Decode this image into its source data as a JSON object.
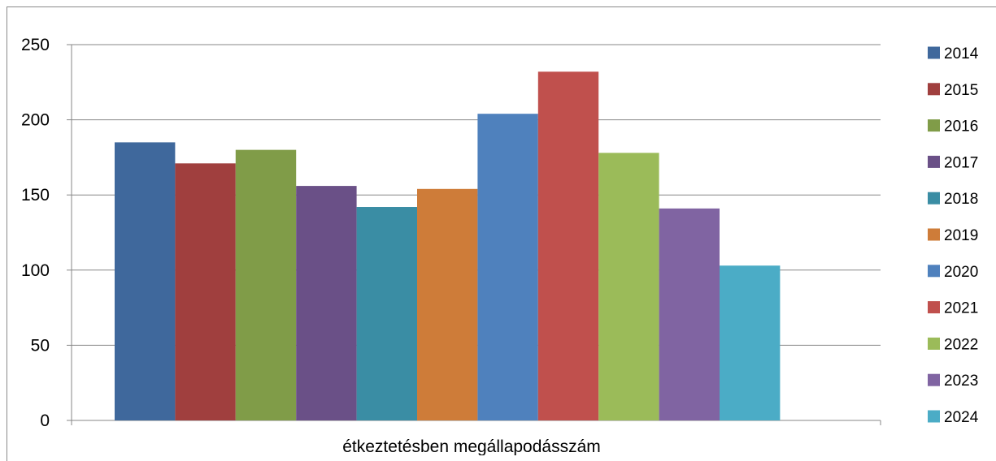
{
  "chart_data": {
    "type": "bar",
    "title": "",
    "xlabel": "étkeztetésben megállapodásszám",
    "ylabel": "",
    "categories": [
      "étkeztetésben megállapodásszám"
    ],
    "ylim": [
      0,
      250
    ],
    "yticks": [
      "0",
      "50",
      "100",
      "150",
      "200",
      "250"
    ],
    "grid": true,
    "legend_position": "right",
    "series": [
      {
        "name": "2014",
        "values": [
          185
        ],
        "color": "#3F689C"
      },
      {
        "name": "2015",
        "values": [
          171
        ],
        "color": "#A03F3E"
      },
      {
        "name": "2016",
        "values": [
          180
        ],
        "color": "#809C48"
      },
      {
        "name": "2017",
        "values": [
          156
        ],
        "color": "#6A5087"
      },
      {
        "name": "2018",
        "values": [
          142
        ],
        "color": "#3A8DA4"
      },
      {
        "name": "2019",
        "values": [
          154
        ],
        "color": "#CE7C39"
      },
      {
        "name": "2020",
        "values": [
          204
        ],
        "color": "#4F81BD"
      },
      {
        "name": "2021",
        "values": [
          232
        ],
        "color": "#C0504D"
      },
      {
        "name": "2022",
        "values": [
          178
        ],
        "color": "#9BBB59"
      },
      {
        "name": "2023",
        "values": [
          141
        ],
        "color": "#8064A2"
      },
      {
        "name": "2024",
        "values": [
          103
        ],
        "color": "#4BACC6"
      }
    ]
  }
}
